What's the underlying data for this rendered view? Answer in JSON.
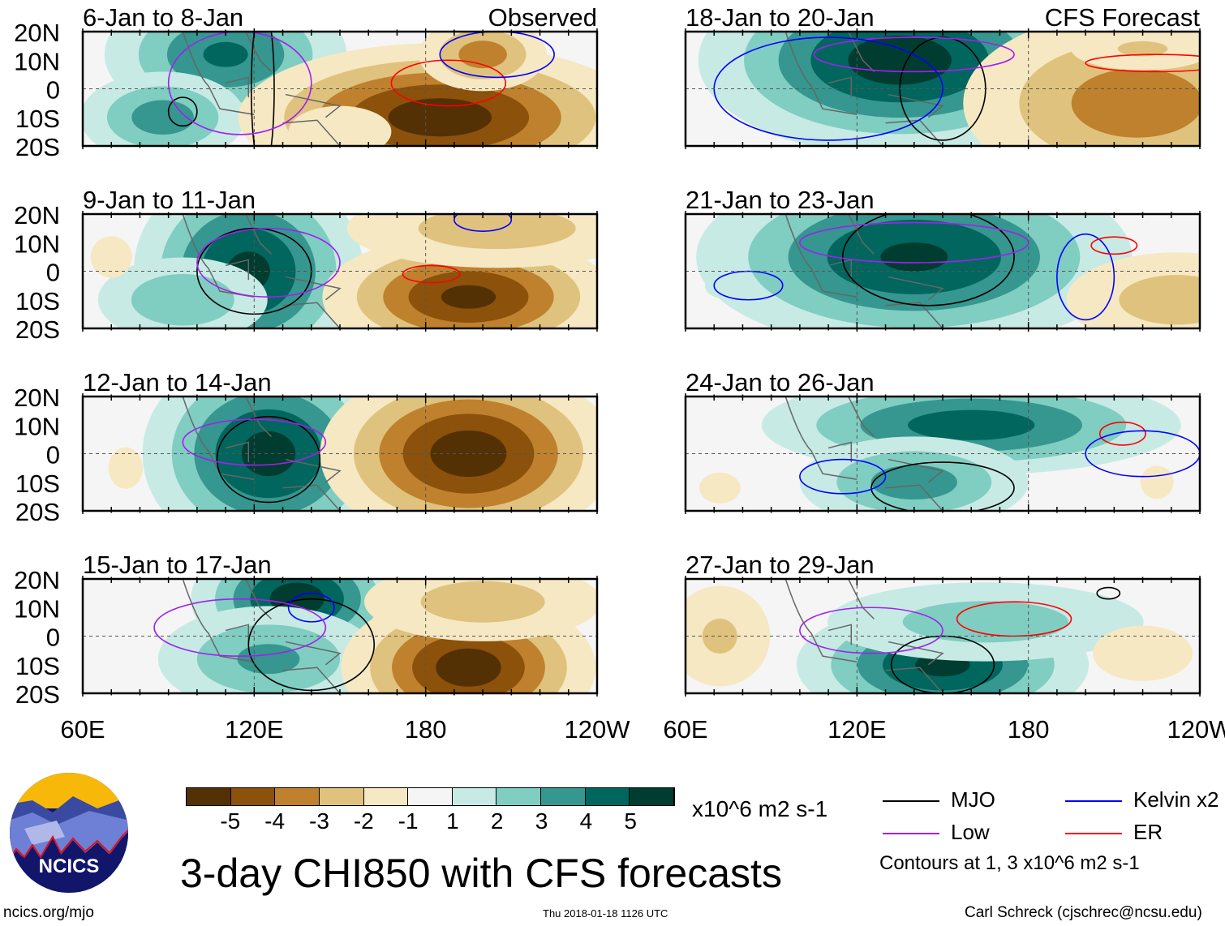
{
  "title": "3-day CHI850 with CFS forecasts",
  "observed_label": "Observed",
  "forecast_label": "CFS Forecast",
  "panels": [
    {
      "title": "6-Jan to 8-Jan",
      "type": "observed"
    },
    {
      "title": "9-Jan to 11-Jan",
      "type": "observed"
    },
    {
      "title": "12-Jan to 14-Jan",
      "type": "observed"
    },
    {
      "title": "15-Jan to 17-Jan",
      "type": "observed"
    },
    {
      "title": "18-Jan to 20-Jan",
      "type": "forecast"
    },
    {
      "title": "21-Jan to 23-Jan",
      "type": "forecast"
    },
    {
      "title": "24-Jan to 26-Jan",
      "type": "forecast"
    },
    {
      "title": "27-Jan to 29-Jan",
      "type": "forecast"
    }
  ],
  "lat_labels": [
    "20N",
    "10N",
    "0",
    "10S",
    "20S"
  ],
  "lon_labels": [
    "60E",
    "120E",
    "180",
    "120W"
  ],
  "colorbar": {
    "colors": [
      "#543005",
      "#8c510a",
      "#bf812d",
      "#dfc27d",
      "#f6e8c3",
      "#f5f5f5",
      "#c7eae5",
      "#80cdc1",
      "#35978f",
      "#01665e",
      "#003c30"
    ],
    "ticks": [
      "-5",
      "-4",
      "-3",
      "-2",
      "-1",
      "1",
      "2",
      "3",
      "4",
      "5"
    ],
    "units": "x10^6 m2 s-1"
  },
  "legend": {
    "items": [
      {
        "label": "MJO",
        "color": "#000000"
      },
      {
        "label": "Kelvin x2",
        "color": "#0000ff"
      },
      {
        "label": "Low",
        "color": "#a020f0"
      },
      {
        "label": "ER",
        "color": "#ff0000"
      }
    ],
    "note": "Contours at 1, 3 x10^6 m2 s-1"
  },
  "logo": {
    "text": "NCICS"
  },
  "footer": {
    "url": "ncics.org/mjo",
    "timestamp": "Thu 2018-01-18 1126 UTC",
    "author": "Carl Schreck (cjschrec@ncsu.edu)"
  }
}
